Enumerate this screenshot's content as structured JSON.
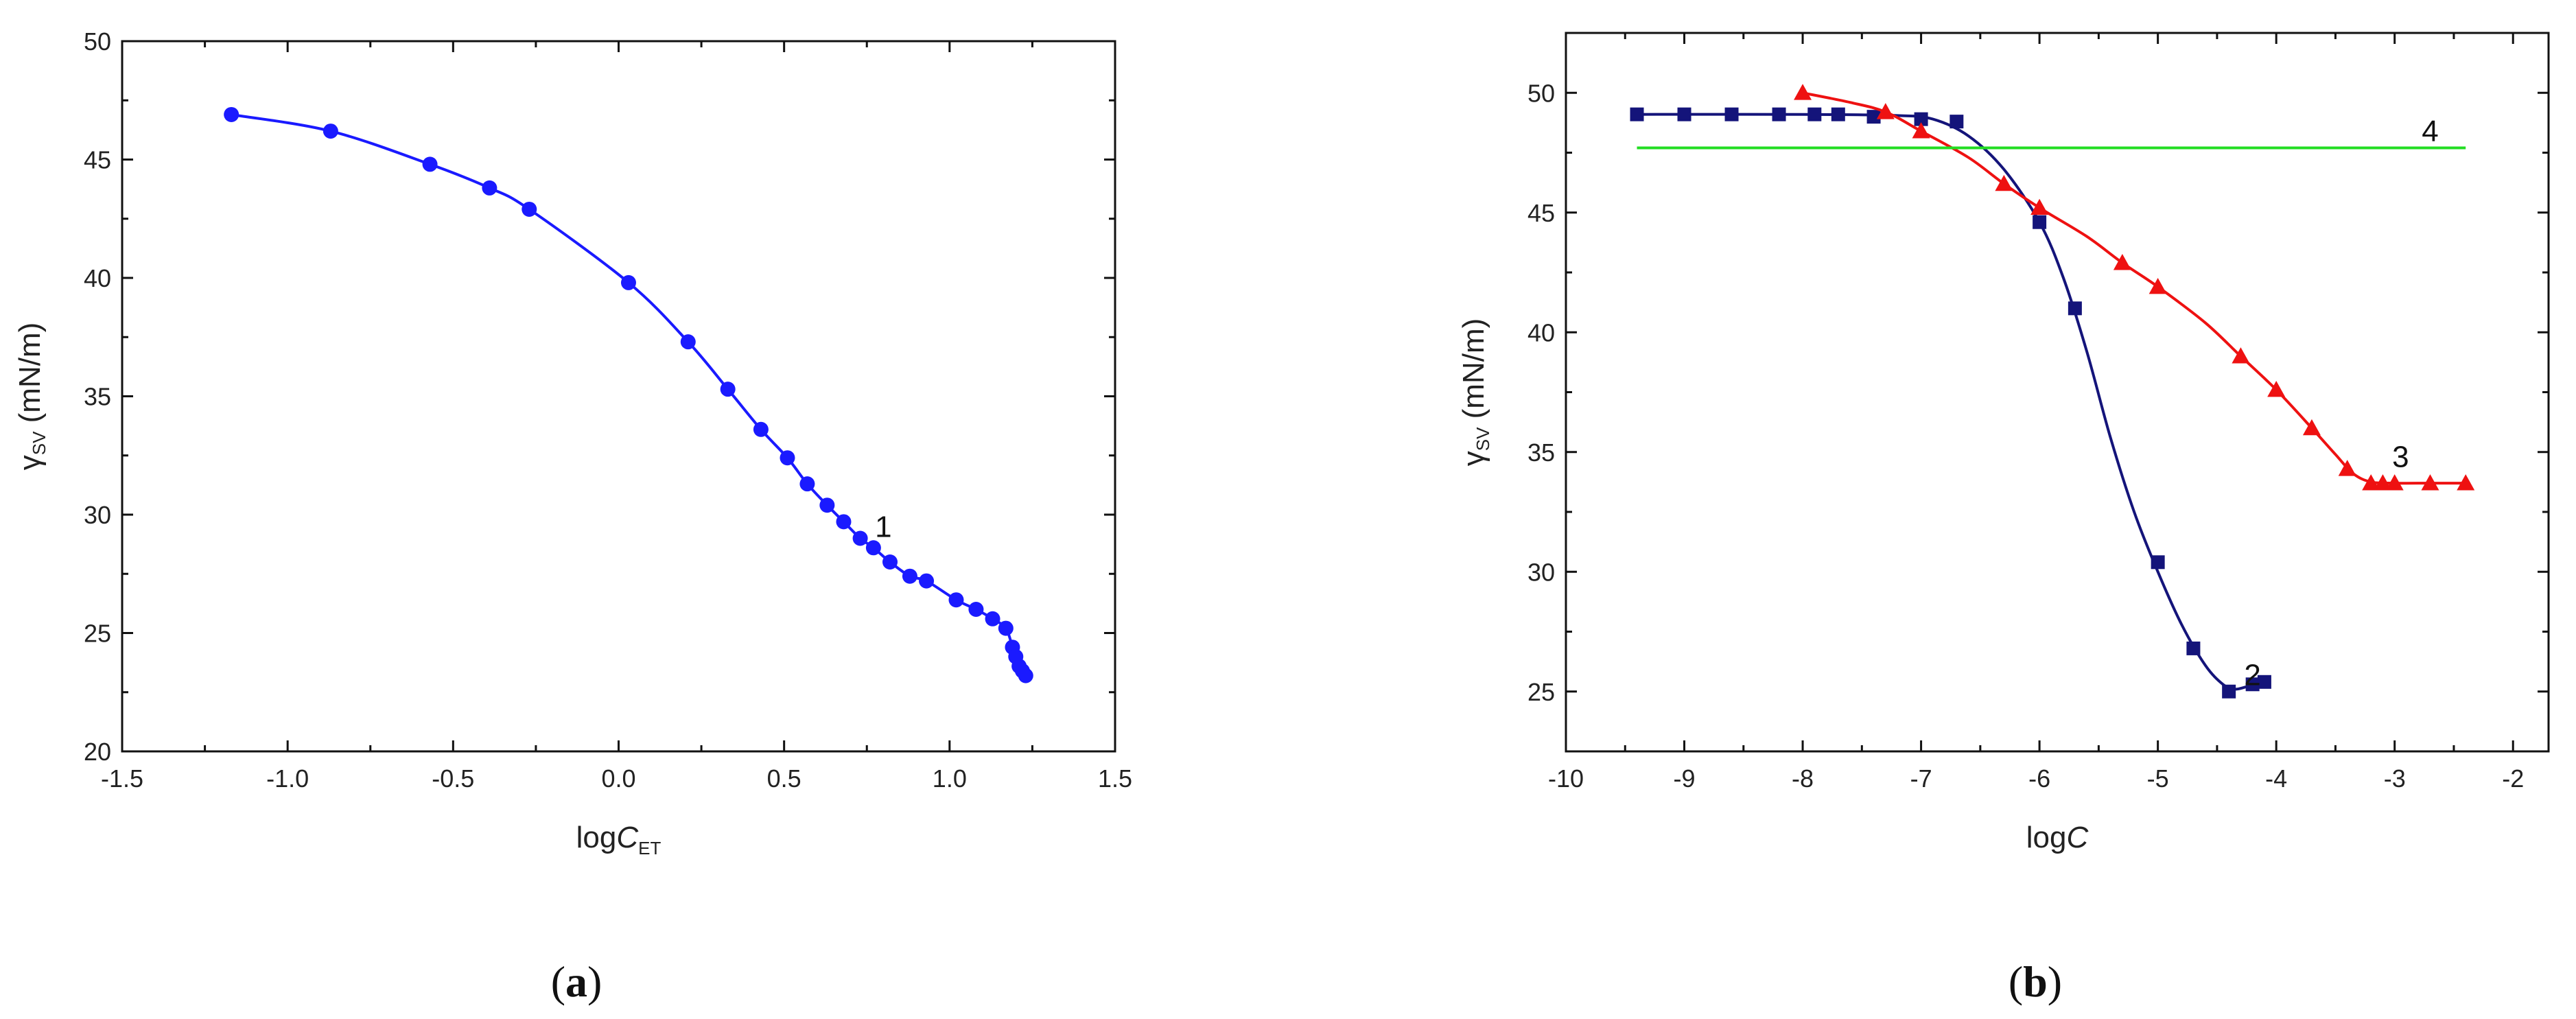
{
  "chart_data": [
    {
      "panel": "a",
      "panel_label": "a",
      "type": "scatter",
      "xlabel": {
        "main": "logC",
        "sub": "ET"
      },
      "ylabel": {
        "main": "γ",
        "sub": "SV",
        "unit": " (mN/m)"
      },
      "xlim": [
        -1.5,
        1.5
      ],
      "ylim": [
        20,
        50
      ],
      "xticks": [
        -1.5,
        -1.0,
        -0.5,
        0.0,
        0.5,
        1.0,
        1.5
      ],
      "xtick_labels": [
        "-1.5",
        "-1.0",
        "-0.5",
        "0.0",
        "0.5",
        "1.0",
        "1.5"
      ],
      "yticks": [
        20,
        25,
        30,
        35,
        40,
        45,
        50
      ],
      "ytick_labels": [
        "20",
        "25",
        "30",
        "35",
        "40",
        "45",
        "50"
      ],
      "grid": false,
      "series": [
        {
          "label": "1",
          "color": "#1a1aff",
          "marker": "circle",
          "label_pos": [
            0.8,
            29.5
          ],
          "x": [
            -1.17,
            -0.87,
            -0.57,
            -0.39,
            -0.27,
            0.03,
            0.21,
            0.33,
            0.43,
            0.51,
            0.57,
            0.63,
            0.68,
            0.73,
            0.77,
            0.82,
            0.88,
            0.93,
            1.02,
            1.08,
            1.13,
            1.17,
            1.19,
            1.2,
            1.21,
            1.22,
            1.23
          ],
          "y": [
            46.9,
            46.2,
            44.8,
            43.8,
            42.9,
            39.8,
            37.3,
            35.3,
            33.6,
            32.4,
            31.3,
            30.4,
            29.7,
            29.0,
            28.6,
            28.0,
            27.4,
            27.2,
            26.4,
            26.0,
            25.6,
            25.2,
            24.4,
            24.0,
            23.6,
            23.4,
            23.2
          ]
        }
      ]
    },
    {
      "panel": "b",
      "panel_label": "b",
      "type": "scatter",
      "xlabel": {
        "main": "logC",
        "sub": ""
      },
      "ylabel": {
        "main": "γ",
        "sub": "SV",
        "unit": " (mN/m)"
      },
      "xlim": [
        -10,
        -1.7
      ],
      "ylim": [
        22.5,
        52.5
      ],
      "xticks": [
        -10,
        -9,
        -8,
        -7,
        -6,
        -5,
        -4,
        -3,
        -2
      ],
      "xtick_labels": [
        "-10",
        "-9",
        "-8",
        "-7",
        "-6",
        "-5",
        "-4",
        "-3",
        "-2"
      ],
      "yticks": [
        25,
        30,
        35,
        40,
        45,
        50
      ],
      "ytick_labels": [
        "25",
        "30",
        "35",
        "40",
        "45",
        "50"
      ],
      "grid": false,
      "series": [
        {
          "label": "2",
          "color": "#14147a",
          "marker": "square",
          "label_pos": [
            -4.2,
            25.7
          ],
          "x": [
            -9.4,
            -9.0,
            -8.6,
            -8.2,
            -7.9,
            -7.7,
            -7.4,
            -7.0,
            -6.7,
            -6.0,
            -5.7,
            -5.0,
            -4.7,
            -4.4,
            -4.2,
            -4.1
          ],
          "y": [
            49.1,
            49.1,
            49.1,
            49.1,
            49.1,
            49.1,
            49.0,
            48.9,
            48.8,
            44.6,
            41.0,
            30.4,
            26.8,
            25.0,
            25.3,
            25.4
          ],
          "curve_x": [
            -9.4,
            -8.0,
            -7.2,
            -6.9,
            -6.6,
            -6.3,
            -6.0,
            -5.8,
            -5.6,
            -5.4,
            -5.2,
            -5.0,
            -4.8,
            -4.6,
            -4.45,
            -4.35,
            -4.25,
            -4.1
          ],
          "curve_y": [
            49.1,
            49.1,
            49.05,
            48.9,
            48.2,
            46.8,
            44.6,
            42.3,
            39.2,
            35.6,
            32.5,
            30.0,
            27.8,
            26.1,
            25.3,
            25.1,
            25.2,
            25.4
          ]
        },
        {
          "label": "3",
          "color": "#ee1111",
          "marker": "triangle",
          "label_pos": [
            -2.95,
            34.8
          ],
          "x": [
            -8.0,
            -7.3,
            -7.0,
            -6.3,
            -6.0,
            -5.3,
            -5.0,
            -4.3,
            -4.0,
            -3.7,
            -3.4,
            -3.2,
            -3.1,
            -3.0,
            -2.7,
            -2.4
          ],
          "y": [
            50.0,
            49.2,
            48.4,
            46.2,
            45.2,
            42.9,
            41.9,
            39.0,
            37.6,
            36.0,
            34.3,
            33.7,
            33.7,
            33.7,
            33.7,
            33.7
          ],
          "curve_x": [
            -8.0,
            -7.6,
            -7.3,
            -7.0,
            -6.6,
            -6.3,
            -6.0,
            -5.6,
            -5.3,
            -5.0,
            -4.6,
            -4.3,
            -4.0,
            -3.7,
            -3.5,
            -3.35,
            -3.2,
            -3.0,
            -2.7,
            -2.4
          ],
          "curve_y": [
            50.0,
            49.6,
            49.2,
            48.4,
            47.3,
            46.2,
            45.2,
            44.0,
            42.9,
            41.9,
            40.4,
            39.0,
            37.6,
            36.0,
            34.9,
            34.1,
            33.75,
            33.7,
            33.7,
            33.7
          ]
        },
        {
          "label": "4",
          "color": "#22dd22",
          "marker": "none",
          "label_pos": [
            -2.7,
            48.4
          ],
          "x": [
            -9.4,
            -2.4
          ],
          "y": [
            47.7,
            47.7
          ]
        }
      ]
    }
  ]
}
